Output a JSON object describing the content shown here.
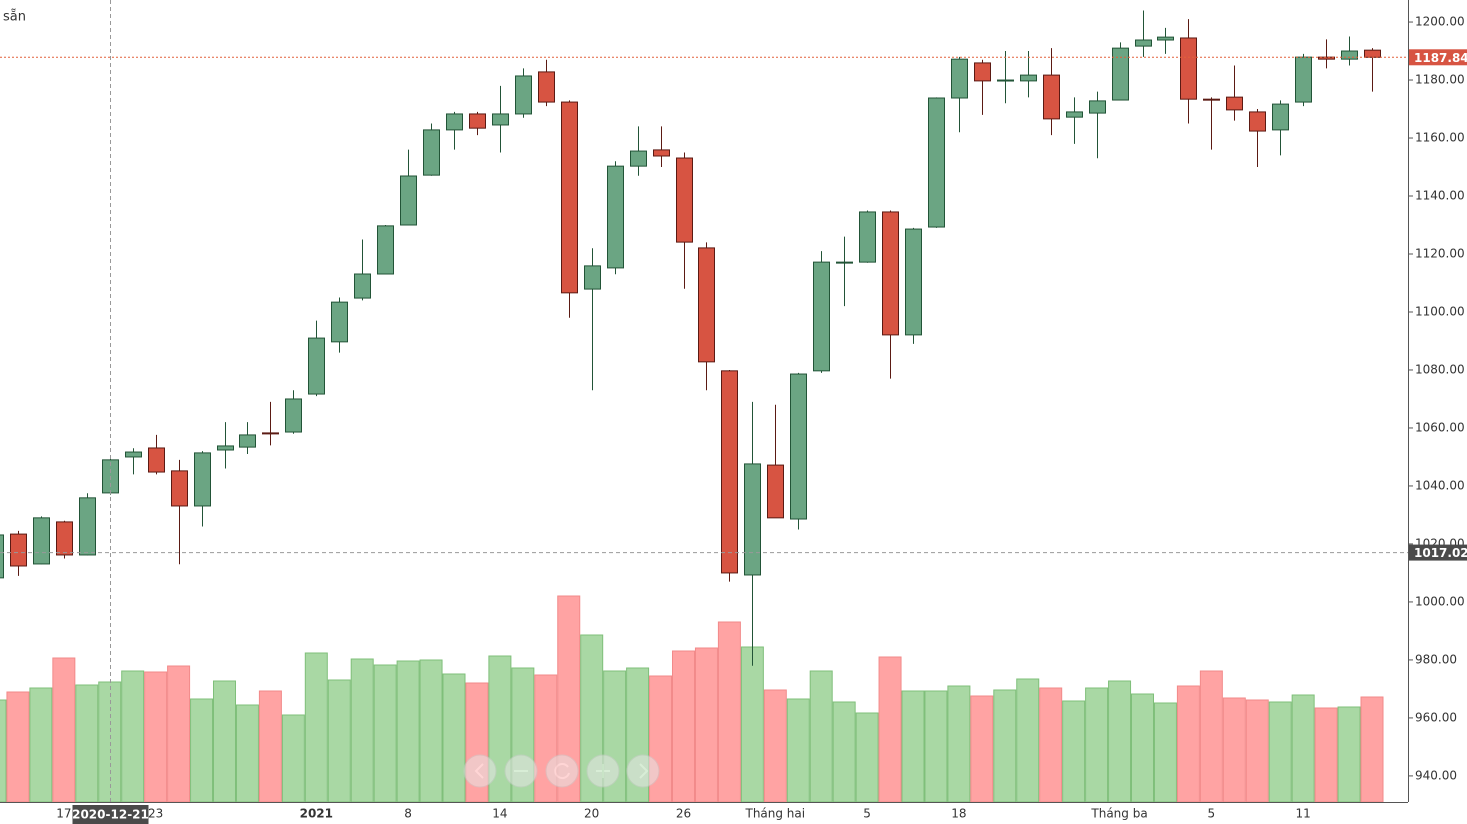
{
  "corner_text": "sẵn",
  "chart_data": {
    "type": "candlestick",
    "categories": [
      null,
      null,
      null,
      "17",
      null,
      "2020-12-21",
      null,
      "23",
      null,
      null,
      null,
      null,
      null,
      null,
      "2021",
      null,
      null,
      null,
      "8",
      null,
      null,
      null,
      "14",
      null,
      null,
      null,
      "20",
      null,
      null,
      null,
      "26",
      null,
      null,
      null,
      "Tháng hai",
      null,
      null,
      null,
      "5",
      null,
      null,
      null,
      "18",
      null,
      null,
      null,
      null,
      null,
      null,
      "Tháng ba",
      null,
      null,
      null,
      "5",
      null,
      null,
      null,
      "11",
      null,
      null,
      null
    ],
    "open": [
      1008.3,
      1023.4,
      1013.1,
      1027.6,
      1016.2,
      1037.6,
      1050.0,
      1053.1,
      1045.2,
      1033.1,
      1052.4,
      1053.4,
      1058.3,
      1058.6,
      1071.7,
      1089.7,
      1104.8,
      1113.1,
      1130.0,
      1147.2,
      1162.8,
      1168.3,
      1164.5,
      1168.3,
      1182.8,
      1172.4,
      1107.9,
      1115.2,
      1150.3,
      1155.9,
      1153.1,
      1122.1,
      1079.7,
      1009.3,
      1047.2,
      1028.6,
      1079.7,
      1116.9,
      1117.2,
      1134.5,
      1092.1,
      1129.3,
      1173.8,
      1185.9,
      1179.7,
      1179.7,
      1181.7,
      1167.2,
      1168.6,
      1173.1,
      1191.7,
      1193.8,
      1194.5,
      1173.4,
      1174.1,
      1169.0,
      1162.8,
      1172.4,
      1187.9,
      1187.2,
      1190.3
    ],
    "high": [
      1024,
      1024.5,
      1029.5,
      1028,
      1037.5,
      1050,
      1053,
      1057.6,
      1049,
      1052,
      1062,
      1062,
      1069,
      1073,
      1097,
      1105,
      1125,
      1130,
      1156,
      1165,
      1169,
      1169,
      1178,
      1184,
      1187,
      1173,
      1122,
      1152,
      1164,
      1164,
      1155,
      1124,
      1080,
      1069,
      1068,
      1079,
      1121,
      1126,
      1135,
      1135,
      1129,
      1174,
      1188,
      1187,
      1190,
      1190,
      1191,
      1174,
      1176,
      1193,
      1204,
      1198,
      1201,
      1174,
      1185,
      1170,
      1173,
      1189,
      1194,
      1195,
      1191
    ],
    "low": [
      1007,
      1009,
      1013,
      1015,
      1016,
      1037,
      1044,
      1044,
      1013,
      1026,
      1046,
      1051,
      1054,
      1058,
      1071,
      1086,
      1104,
      1113,
      1130,
      1147,
      1156,
      1161,
      1155,
      1167,
      1171,
      1098,
      1073,
      1113,
      1147,
      1150,
      1108,
      1073,
      1007,
      978,
      1029,
      1025,
      1079,
      1102,
      1117,
      1077,
      1089,
      1129,
      1162,
      1168,
      1172,
      1174,
      1161,
      1158,
      1153,
      1173,
      1188,
      1189,
      1165,
      1156,
      1166,
      1150,
      1154,
      1171,
      1184,
      1185,
      1176
    ],
    "close": [
      1023.1,
      1012.4,
      1029.0,
      1016.2,
      1035.9,
      1049.0,
      1051.7,
      1044.8,
      1033.1,
      1051.4,
      1053.8,
      1057.6,
      1058.0,
      1070.0,
      1091.0,
      1103.4,
      1113.1,
      1129.7,
      1146.9,
      1162.8,
      1168.3,
      1163.4,
      1168.3,
      1181.4,
      1172.4,
      1106.6,
      1115.9,
      1150.3,
      1155.5,
      1153.8,
      1124.1,
      1082.8,
      1010.0,
      1047.6,
      1029.0,
      1078.6,
      1117.2,
      1117.2,
      1134.5,
      1092.1,
      1128.6,
      1173.8,
      1187.2,
      1179.7,
      1180.0,
      1181.7,
      1166.6,
      1169.0,
      1172.8,
      1191.0,
      1193.8,
      1194.8,
      1173.4,
      1173.1,
      1169.7,
      1162.4,
      1171.7,
      1187.9,
      1187.2,
      1190.0,
      1187.84
    ],
    "volume": [
      102,
      110,
      114,
      144,
      117,
      120,
      131,
      130,
      136,
      103,
      121,
      97,
      111,
      87,
      149,
      122,
      143,
      137,
      141,
      142,
      128,
      119,
      146,
      134,
      127,
      206,
      167,
      131,
      134,
      126,
      151,
      154,
      180,
      155,
      112,
      103,
      131,
      100,
      89,
      145,
      111,
      111,
      116,
      106,
      112,
      123,
      114,
      101,
      114,
      121,
      108,
      99,
      116,
      131,
      104,
      102,
      100,
      107,
      94,
      95,
      105
    ],
    "up_color": "#6ba583",
    "down_color": "#d75442",
    "volume_up_color": "#a9d8a4",
    "volume_down_color": "#ffa3a3",
    "ylim": [
      931,
      1207.6
    ],
    "yticks": [
      {
        "value": 940,
        "label": "940.00"
      },
      {
        "value": 960,
        "label": "960.00"
      },
      {
        "value": 980,
        "label": "980.00"
      },
      {
        "value": 1000,
        "label": "1000.00"
      },
      {
        "value": 1020,
        "label": "1020.00"
      },
      {
        "value": 1040,
        "label": "1040.00"
      },
      {
        "value": 1060,
        "label": "1060.00"
      },
      {
        "value": 1080,
        "label": "1080.00"
      },
      {
        "value": 1100,
        "label": "1100.00"
      },
      {
        "value": 1120,
        "label": "1120.00"
      },
      {
        "value": 1140,
        "label": "1140.00"
      },
      {
        "value": 1160,
        "label": "1160.00"
      },
      {
        "value": 1180,
        "label": "1180.00"
      },
      {
        "value": 1200,
        "label": "1200.00"
      }
    ],
    "last_price": 1187.84,
    "crosshair_price": 1017.02
  }
}
